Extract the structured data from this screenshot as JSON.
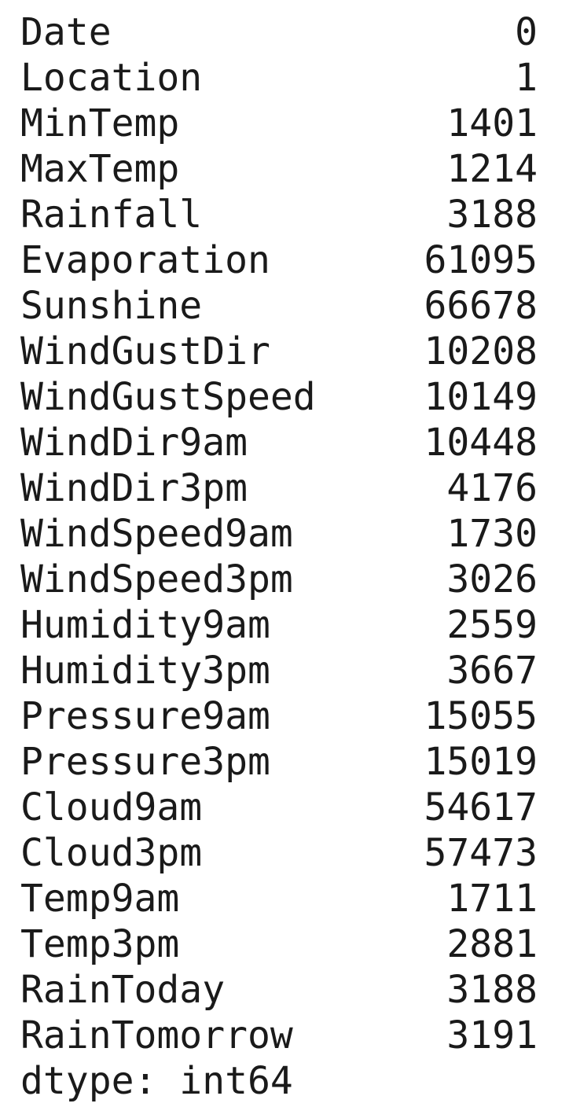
{
  "series": {
    "rows": [
      {
        "label": "Date",
        "value": "0"
      },
      {
        "label": "Location",
        "value": "1"
      },
      {
        "label": "MinTemp",
        "value": "1401"
      },
      {
        "label": "MaxTemp",
        "value": "1214"
      },
      {
        "label": "Rainfall",
        "value": "3188"
      },
      {
        "label": "Evaporation",
        "value": "61095"
      },
      {
        "label": "Sunshine",
        "value": "66678"
      },
      {
        "label": "WindGustDir",
        "value": "10208"
      },
      {
        "label": "WindGustSpeed",
        "value": "10149"
      },
      {
        "label": "WindDir9am",
        "value": "10448"
      },
      {
        "label": "WindDir3pm",
        "value": "4176"
      },
      {
        "label": "WindSpeed9am",
        "value": "1730"
      },
      {
        "label": "WindSpeed3pm",
        "value": "3026"
      },
      {
        "label": "Humidity9am",
        "value": "2559"
      },
      {
        "label": "Humidity3pm",
        "value": "3667"
      },
      {
        "label": "Pressure9am",
        "value": "15055"
      },
      {
        "label": "Pressure3pm",
        "value": "15019"
      },
      {
        "label": "Cloud9am",
        "value": "54617"
      },
      {
        "label": "Cloud3pm",
        "value": "57473"
      },
      {
        "label": "Temp9am",
        "value": "1711"
      },
      {
        "label": "Temp3pm",
        "value": "2881"
      },
      {
        "label": "RainToday",
        "value": "3188"
      },
      {
        "label": "RainTomorrow",
        "value": "3191"
      }
    ],
    "dtype_line": "dtype: int64"
  }
}
